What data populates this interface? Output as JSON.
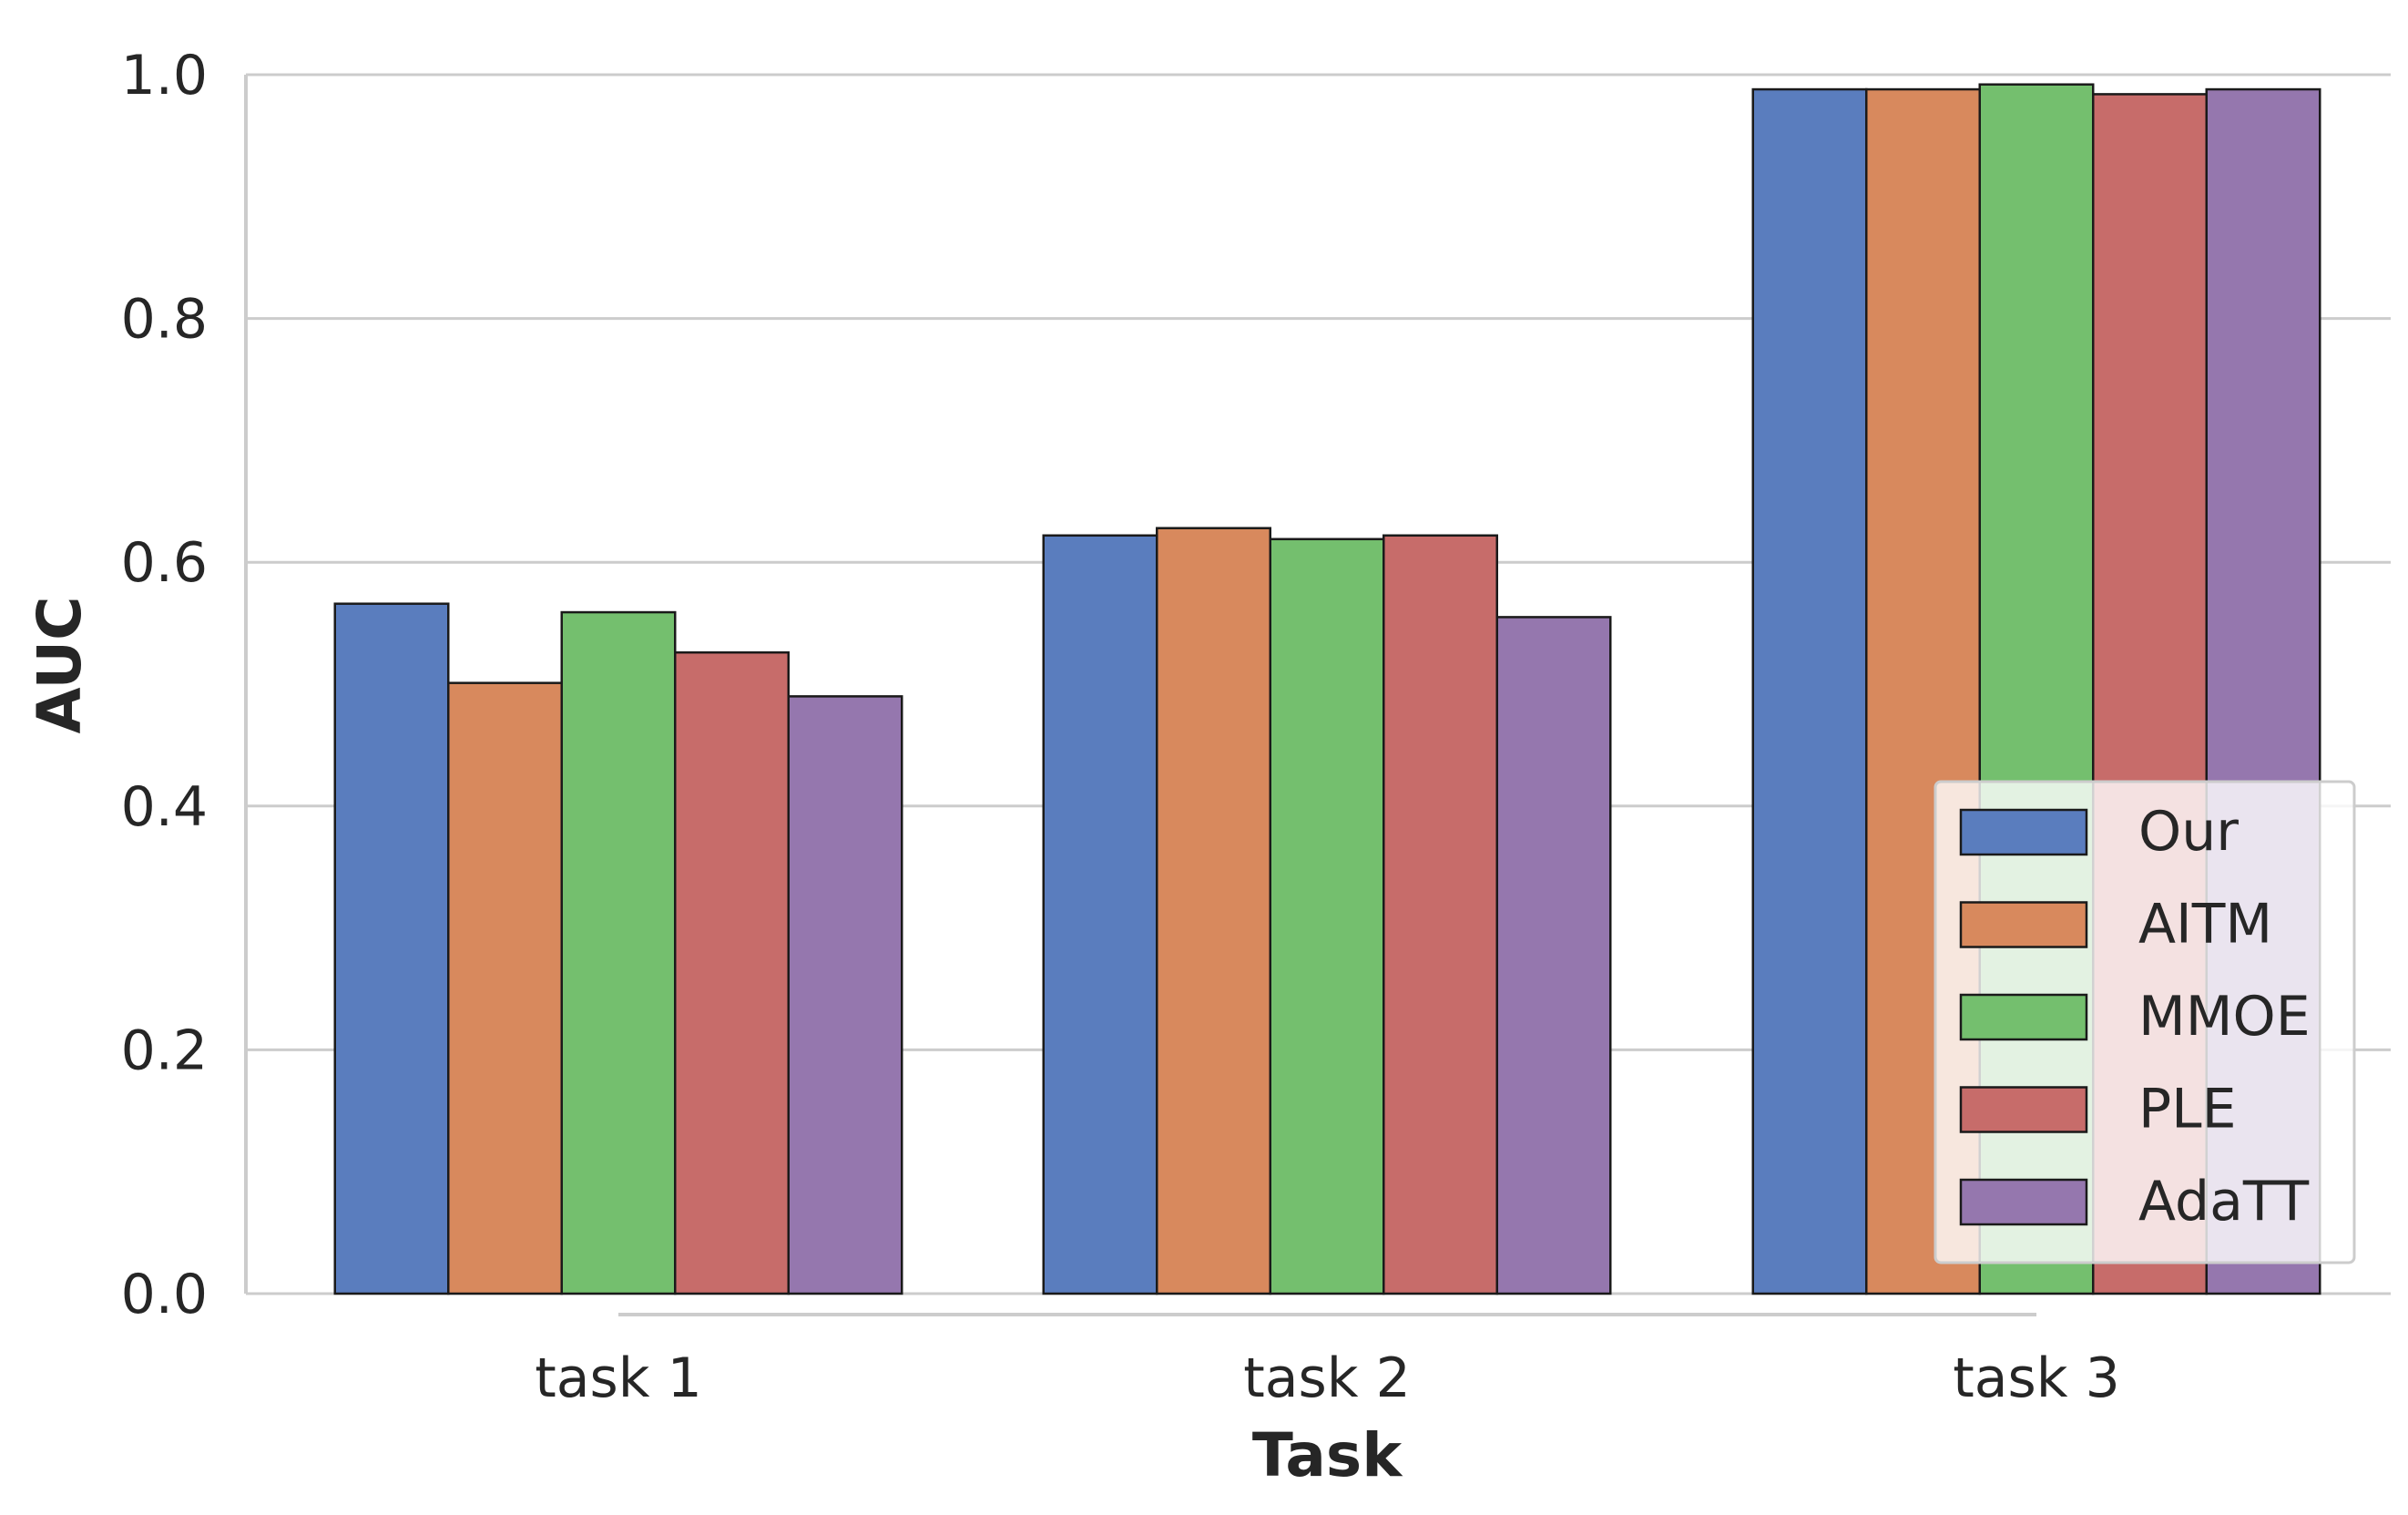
{
  "chart_data": {
    "type": "bar",
    "xlabel": "Task",
    "ylabel": "AUC",
    "categories": [
      "task 1",
      "task 2",
      "task 3"
    ],
    "series": [
      {
        "name": "Our",
        "color": "#5a7dbe",
        "values": [
          0.566,
          0.622,
          0.988
        ]
      },
      {
        "name": "AITM",
        "color": "#d8895d",
        "values": [
          0.501,
          0.628,
          0.988
        ]
      },
      {
        "name": "MMOE",
        "color": "#74bf6e",
        "values": [
          0.559,
          0.619,
          0.992
        ]
      },
      {
        "name": "PLE",
        "color": "#c76c6a",
        "values": [
          0.526,
          0.622,
          0.984
        ]
      },
      {
        "name": "AdaTT",
        "color": "#9577ae",
        "values": [
          0.49,
          0.555,
          0.988
        ]
      }
    ],
    "ylim": [
      0,
      1.0
    ],
    "yticks": [
      "0.0",
      "0.2",
      "0.4",
      "0.6",
      "0.8",
      "1.0"
    ],
    "grid": "horizontal",
    "legend": "lower-right"
  }
}
